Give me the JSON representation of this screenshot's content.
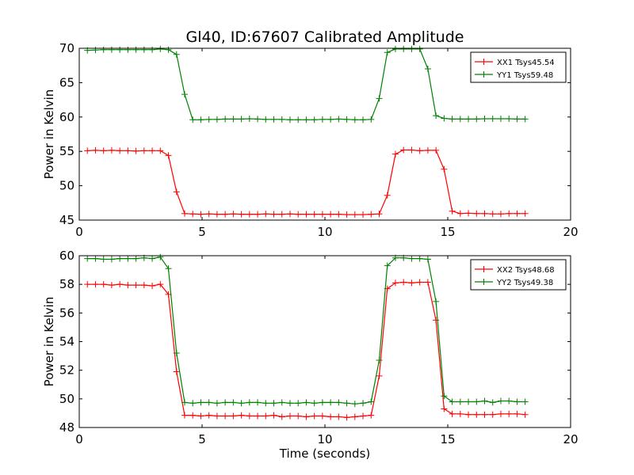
{
  "figure": {
    "title": "Gl40, ID:67607 Calibrated Amplitude",
    "xlabel": "Time (seconds)"
  },
  "colors": {
    "red": "#ff0000",
    "green": "#008000"
  },
  "chart_data": [
    {
      "type": "line",
      "title": "Gl40, ID:67607 Calibrated Amplitude",
      "xlabel": "",
      "ylabel": "Power in Kelvin",
      "xlim": [
        0,
        20
      ],
      "ylim": [
        45,
        70
      ],
      "xticks": [
        0,
        5,
        10,
        15,
        20
      ],
      "yticks": [
        45,
        50,
        55,
        60,
        65,
        70
      ],
      "grid": false,
      "legend_position": "top-right",
      "marker": "+",
      "x": [
        0.33,
        0.66,
        0.99,
        1.32,
        1.65,
        1.98,
        2.31,
        2.64,
        2.97,
        3.3,
        3.63,
        3.96,
        4.29,
        4.62,
        4.95,
        5.28,
        5.61,
        5.94,
        6.27,
        6.6,
        6.93,
        7.26,
        7.59,
        7.92,
        8.25,
        8.58,
        8.91,
        9.24,
        9.57,
        9.9,
        10.23,
        10.56,
        10.89,
        11.22,
        11.55,
        11.88,
        12.21,
        12.54,
        12.87,
        13.2,
        13.53,
        13.86,
        14.19,
        14.52,
        14.85,
        15.18,
        15.51,
        15.84,
        16.17,
        16.5,
        16.83,
        17.16,
        17.49,
        17.82,
        18.15
      ],
      "series": [
        {
          "name": "XX1 Tsys45.54",
          "color": "#ff0000",
          "values": [
            55.1,
            55.15,
            55.1,
            55.15,
            55.1,
            55.1,
            55.05,
            55.1,
            55.1,
            55.1,
            54.4,
            49.1,
            45.95,
            45.9,
            45.85,
            45.9,
            45.85,
            45.85,
            45.9,
            45.85,
            45.85,
            45.85,
            45.9,
            45.85,
            45.85,
            45.9,
            45.85,
            45.85,
            45.85,
            45.85,
            45.85,
            45.85,
            45.8,
            45.8,
            45.8,
            45.85,
            45.9,
            48.6,
            54.6,
            55.2,
            55.2,
            55.1,
            55.15,
            55.15,
            52.4,
            46.3,
            45.95,
            46.0,
            45.95,
            45.95,
            45.9,
            45.9,
            45.95,
            45.95,
            45.95
          ]
        },
        {
          "name": "YY1 Tsys59.48",
          "color": "#008000",
          "values": [
            69.7,
            69.75,
            69.8,
            69.8,
            69.8,
            69.8,
            69.8,
            69.8,
            69.8,
            69.9,
            69.8,
            69.1,
            63.3,
            59.6,
            59.6,
            59.65,
            59.65,
            59.7,
            59.7,
            59.7,
            59.75,
            59.7,
            59.65,
            59.65,
            59.65,
            59.6,
            59.6,
            59.6,
            59.6,
            59.65,
            59.65,
            59.7,
            59.65,
            59.6,
            59.6,
            59.65,
            62.7,
            69.4,
            69.9,
            69.9,
            69.9,
            69.9,
            67.0,
            60.2,
            59.8,
            59.7,
            59.7,
            59.7,
            59.7,
            59.75,
            59.75,
            59.75,
            59.75,
            59.7,
            59.7
          ]
        }
      ]
    },
    {
      "type": "line",
      "title": "",
      "xlabel": "Time (seconds)",
      "ylabel": "Power in Kelvin",
      "xlim": [
        0,
        20
      ],
      "ylim": [
        48,
        60
      ],
      "xticks": [
        0,
        5,
        10,
        15,
        20
      ],
      "yticks": [
        48,
        50,
        52,
        54,
        56,
        58,
        60
      ],
      "grid": false,
      "legend_position": "top-right",
      "marker": "+",
      "x": [
        0.33,
        0.66,
        0.99,
        1.32,
        1.65,
        1.98,
        2.31,
        2.64,
        2.97,
        3.3,
        3.63,
        3.96,
        4.29,
        4.62,
        4.95,
        5.28,
        5.61,
        5.94,
        6.27,
        6.6,
        6.93,
        7.26,
        7.59,
        7.92,
        8.25,
        8.58,
        8.91,
        9.24,
        9.57,
        9.9,
        10.23,
        10.56,
        10.89,
        11.22,
        11.55,
        11.88,
        12.21,
        12.54,
        12.87,
        13.2,
        13.53,
        13.86,
        14.19,
        14.52,
        14.85,
        15.18,
        15.51,
        15.84,
        16.17,
        16.5,
        16.83,
        17.16,
        17.49,
        17.82,
        18.15
      ],
      "series": [
        {
          "name": "XX2 Tsys48.68",
          "color": "#ff0000",
          "values": [
            58.0,
            58.0,
            58.0,
            57.95,
            58.0,
            57.95,
            57.95,
            57.95,
            57.9,
            58.0,
            57.3,
            51.9,
            48.85,
            48.85,
            48.8,
            48.85,
            48.8,
            48.8,
            48.8,
            48.85,
            48.8,
            48.8,
            48.8,
            48.85,
            48.75,
            48.8,
            48.8,
            48.75,
            48.8,
            48.8,
            48.75,
            48.75,
            48.7,
            48.75,
            48.8,
            48.85,
            51.6,
            57.7,
            58.1,
            58.15,
            58.1,
            58.15,
            58.15,
            55.5,
            49.3,
            48.95,
            48.95,
            48.9,
            48.9,
            48.9,
            48.9,
            48.95,
            48.95,
            48.95,
            48.9
          ]
        },
        {
          "name": "YY2 Tsys49.38",
          "color": "#008000",
          "values": [
            59.8,
            59.8,
            59.75,
            59.75,
            59.8,
            59.8,
            59.8,
            59.85,
            59.8,
            59.9,
            59.1,
            53.2,
            49.75,
            49.7,
            49.75,
            49.75,
            49.7,
            49.75,
            49.75,
            49.7,
            49.75,
            49.75,
            49.7,
            49.7,
            49.75,
            49.7,
            49.7,
            49.75,
            49.7,
            49.75,
            49.75,
            49.75,
            49.7,
            49.65,
            49.7,
            49.8,
            52.7,
            59.3,
            59.85,
            59.85,
            59.8,
            59.8,
            59.75,
            56.8,
            50.2,
            49.8,
            49.8,
            49.8,
            49.8,
            49.85,
            49.75,
            49.85,
            49.85,
            49.8,
            49.8
          ]
        }
      ]
    }
  ]
}
